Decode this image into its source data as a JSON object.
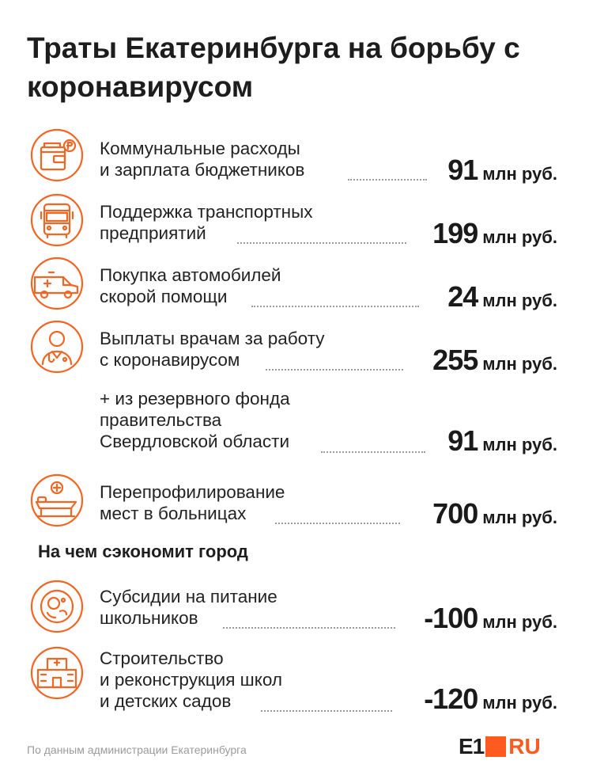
{
  "title": "Траты Екатеринбурга на борьбу с коронавирусом",
  "accent_color": "#f26522",
  "items": [
    {
      "icon": "wallet-coins-icon",
      "lines": [
        "Коммунальные расходы",
        "и зарплата бюджетников"
      ],
      "value": "91",
      "unit": "млн руб."
    },
    {
      "icon": "bus-icon",
      "lines": [
        "Поддержка транспортных",
        "предприятий"
      ],
      "value": "199",
      "unit": "млн руб."
    },
    {
      "icon": "ambulance-icon",
      "lines": [
        "Покупка автомобилей",
        "скорой помощи"
      ],
      "value": "24",
      "unit": "млн руб."
    },
    {
      "icon": "doctor-icon",
      "lines": [
        "Выплаты врачам за работу",
        "с коронавирусом"
      ],
      "value": "255",
      "unit": "млн руб."
    },
    {
      "icon": "",
      "lines": [
        "+ из резервного фонда",
        "правительства",
        "Свердловской области"
      ],
      "value": "91",
      "unit": "млн руб."
    },
    {
      "icon": "hospital-bed-icon",
      "lines": [
        "Перепрофилирование",
        "мест в больницах"
      ],
      "value": "700",
      "unit": "млн руб."
    }
  ],
  "savings_title": "На чем сэкономит город",
  "savings": [
    {
      "icon": "food-plate-icon",
      "lines": [
        "Субсидии на питание",
        "школьников"
      ],
      "value": "-100",
      "unit": "млн руб."
    },
    {
      "icon": "school-building-icon",
      "lines": [
        "Строительство",
        "и реконструкция школ",
        "и детских садов"
      ],
      "value": "-120",
      "unit": "млн руб."
    }
  ],
  "footer": {
    "source": "По данным администрации Екатеринбурга",
    "logo_e1": "E1",
    "logo_ru": "RU"
  }
}
